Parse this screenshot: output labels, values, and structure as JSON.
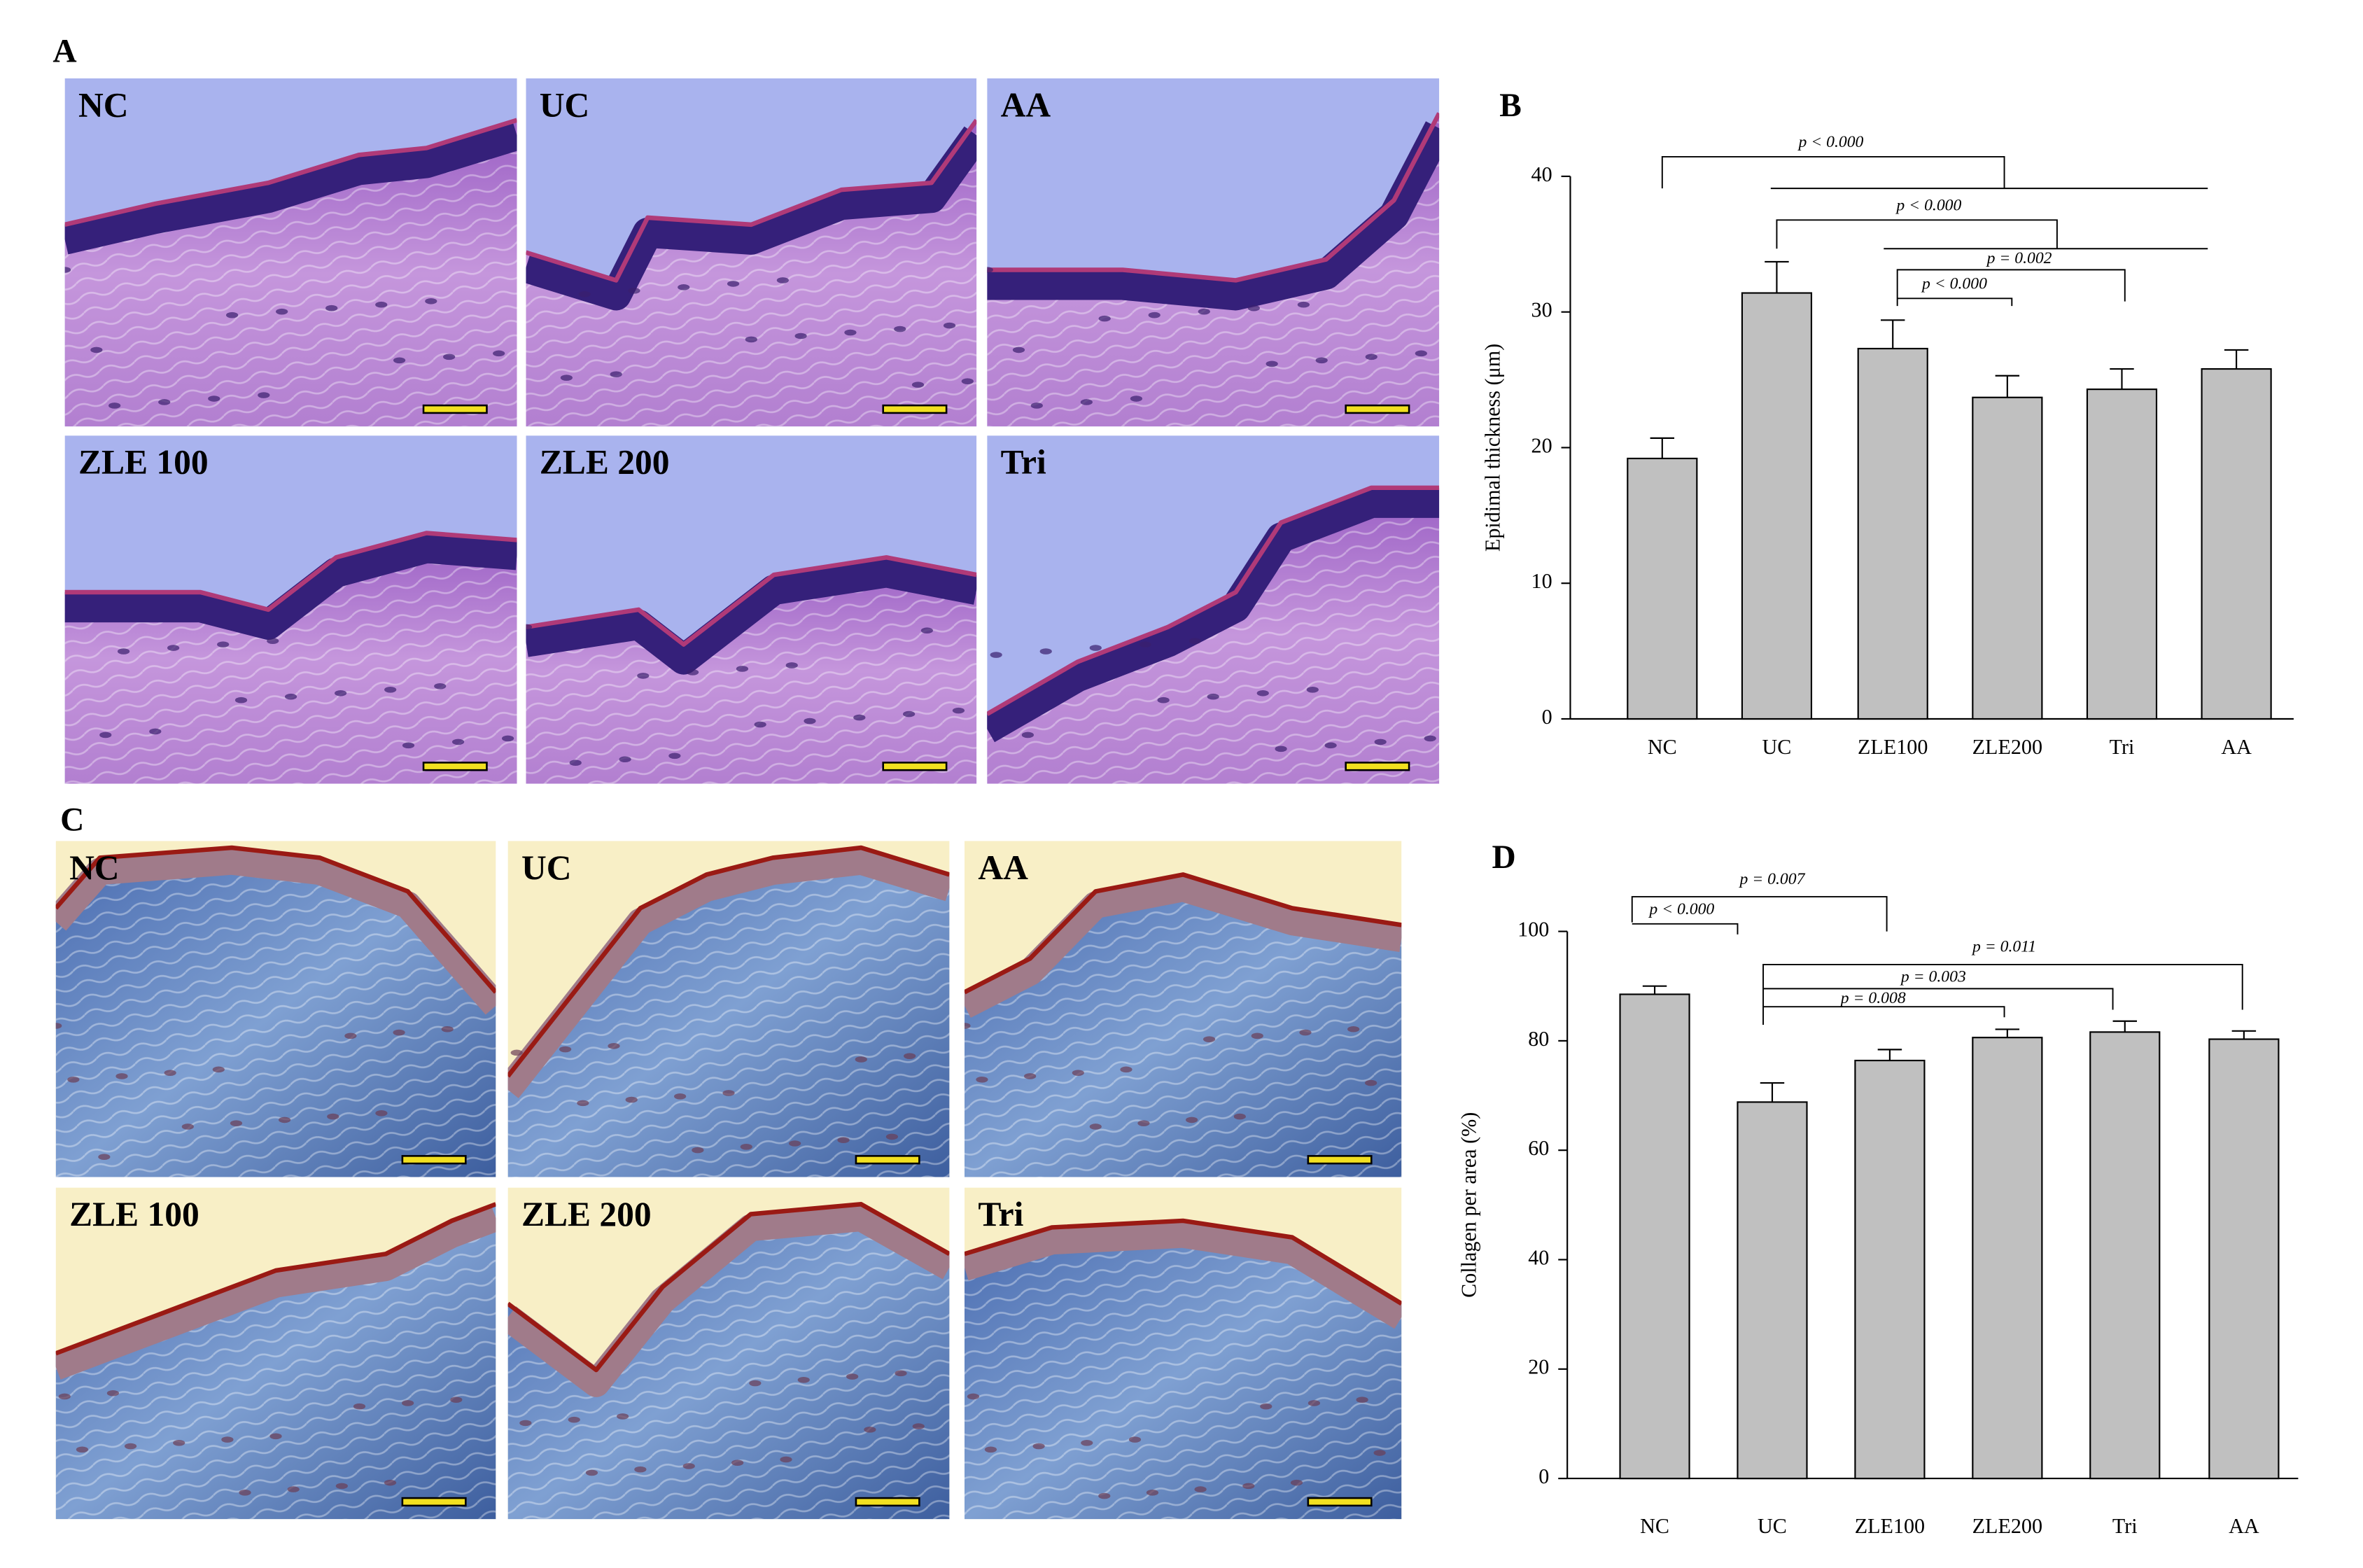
{
  "panel_labels": [
    "A",
    "B",
    "C",
    "D"
  ],
  "he_images": {
    "labels": [
      "NC",
      "UC",
      "AA",
      "ZLE 100",
      "ZLE 200",
      "Tri"
    ]
  },
  "mt_images": {
    "labels": [
      "NC",
      "UC",
      "AA",
      "ZLE 100",
      "ZLE 200",
      "Tri"
    ]
  },
  "chart_data": [
    {
      "type": "bar",
      "y_label": "Epidimal thickness (μm)",
      "categories": [
        "NC",
        "UC",
        "ZLE100",
        "ZLE200",
        "Tri",
        "AA"
      ],
      "values": [
        19.2,
        31.4,
        27.3,
        23.7,
        24.3,
        25.8
      ],
      "errors": [
        1.5,
        2.3,
        2.1,
        1.6,
        1.5,
        1.4
      ],
      "color": "#c0c0c0",
      "ylim": [
        0,
        40
      ],
      "yticks": [
        0,
        10,
        20,
        30,
        40
      ],
      "annotations": [
        "p < 0.000",
        "p < 0.000",
        "p = 0.002",
        "p < 0.000"
      ]
    },
    {
      "type": "bar",
      "y_label": "Collagen per area (%)",
      "categories": [
        "NC",
        "UC",
        "ZLE100",
        "ZLE200",
        "Tri",
        "AA"
      ],
      "values": [
        88.5,
        68.8,
        76.4,
        80.6,
        81.6,
        80.3
      ],
      "errors": [
        1.5,
        3.5,
        2.0,
        1.5,
        2.0,
        1.5
      ],
      "color": "#c0c0c0",
      "ylim": [
        0,
        100
      ],
      "yticks": [
        0,
        20,
        40,
        60,
        80,
        100
      ],
      "annotations": [
        "p = 0.007",
        "p < 0.000",
        "p = 0.011",
        "p = 0.003",
        "p = 0.008"
      ]
    }
  ]
}
